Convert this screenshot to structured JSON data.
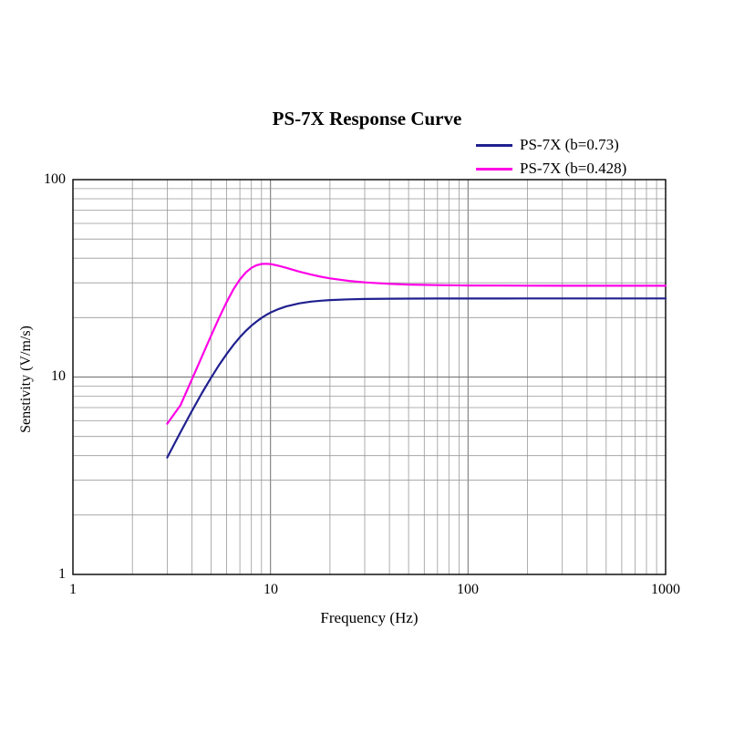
{
  "legend": {
    "items": [
      {
        "label": "PS-7X (b=0.73)",
        "color": "#202090"
      },
      {
        "label": "PS-7X (b=0.428)",
        "color": "#ff00e6"
      }
    ]
  },
  "colors": {
    "grid_minor": "#999999",
    "grid_major": "#6e6e6e",
    "frame": "#000000"
  },
  "chart_data": {
    "type": "line",
    "title": "PS-7X Response Curve",
    "xlabel": "Frequency (Hz)",
    "ylabel": "Senstivity (V/m/s)",
    "xscale": "log",
    "yscale": "log",
    "xlim": [
      1,
      1000
    ],
    "ylim": [
      1,
      100
    ],
    "grid": "log major and minor gridlines on",
    "legend_position": "top-right above plot",
    "x_tick_labels": [
      "1",
      "10",
      "100",
      "1000"
    ],
    "y_tick_labels": [
      "1",
      "10",
      "100"
    ],
    "x": [
      3,
      3.5,
      4,
      4.5,
      5,
      5.5,
      6,
      6.5,
      7,
      7.5,
      8,
      8.5,
      9,
      9.5,
      10,
      11,
      12,
      14,
      16,
      18,
      20,
      25,
      30,
      40,
      50,
      70,
      100,
      150,
      200,
      300,
      500,
      700,
      1000
    ],
    "series": [
      {
        "name": "PS-7X (b=0.73)",
        "color": "#202090",
        "values": [
          3.91,
          5.25,
          6.72,
          8.3,
          9.91,
          11.53,
          13.09,
          14.56,
          15.91,
          17.12,
          18.19,
          19.12,
          19.93,
          20.62,
          21.2,
          22.12,
          22.78,
          23.62,
          24.09,
          24.36,
          24.53,
          24.75,
          24.85,
          24.93,
          24.95,
          24.98,
          24.99,
          24.99,
          25.0,
          25.0,
          25.0,
          25.0,
          25.0
        ]
      },
      {
        "name": "PS-7X (b=0.428)",
        "color": "#ff00e6",
        "values": [
          5.8,
          7.19,
          9.72,
          12.72,
          16.18,
          20.01,
          23.99,
          27.84,
          31.22,
          33.88,
          35.73,
          36.84,
          37.37,
          37.48,
          37.33,
          36.62,
          35.76,
          34.21,
          33.05,
          32.22,
          31.61,
          30.67,
          30.16,
          29.65,
          29.41,
          29.21,
          29.1,
          29.05,
          29.03,
          29.01,
          29.0,
          29.0,
          29.0
        ]
      }
    ]
  }
}
